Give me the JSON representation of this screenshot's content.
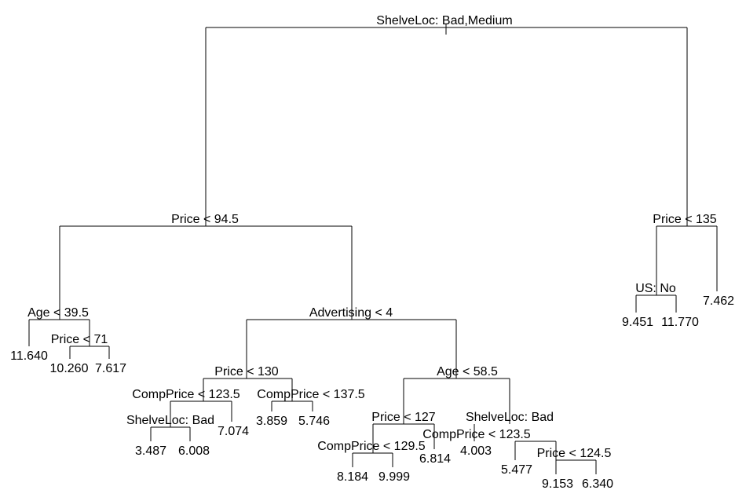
{
  "tree": {
    "root": {
      "id": "root",
      "split": "ShelveLoc: Bad,Medium",
      "left": {
        "id": "n2",
        "split": "Price < 94.5",
        "left": {
          "id": "n4",
          "split": "Age < 39.5",
          "left": {
            "id": "l1",
            "leaf": "11.640"
          },
          "right": {
            "id": "n5",
            "split": "Price < 71",
            "left": {
              "id": "l2",
              "leaf": "10.260"
            },
            "right": {
              "id": "l3",
              "leaf": "7.617"
            }
          }
        },
        "right": {
          "id": "n6",
          "split": "Advertising < 4",
          "left": {
            "id": "n7",
            "split": "Price < 130",
            "left": {
              "id": "n8",
              "split": "CompPrice < 123.5",
              "left": {
                "id": "n9",
                "split": "ShelveLoc: Bad",
                "left": {
                  "id": "l4",
                  "leaf": "3.487"
                },
                "right": {
                  "id": "l5",
                  "leaf": "6.008"
                }
              },
              "right": {
                "id": "l6",
                "leaf": "7.074"
              }
            },
            "right": {
              "id": "n10",
              "split": "CompPrice < 137.5",
              "left": {
                "id": "l7",
                "leaf": "3.859"
              },
              "right": {
                "id": "l8",
                "leaf": "5.746"
              }
            }
          },
          "right": {
            "id": "n11",
            "split": "Age < 58.5",
            "left": {
              "id": "n12",
              "split": "Price < 127",
              "left": {
                "id": "n13",
                "split": "CompPrice < 129.5",
                "left": {
                  "id": "l9",
                  "leaf": "8.184"
                },
                "right": {
                  "id": "l10",
                  "leaf": "9.999"
                }
              },
              "right": {
                "id": "l11",
                "leaf": "6.814"
              }
            },
            "right": {
              "id": "n14",
              "split": "ShelveLoc: Bad",
              "left": {
                "id": "l12",
                "leaf": "4.003"
              },
              "right": {
                "id": "n15",
                "split": "CompPrice < 123.5",
                "left": {
                  "id": "l13",
                  "leaf": "5.477"
                },
                "right": {
                  "id": "n16",
                  "split": "Price < 124.5",
                  "left": {
                    "id": "l14",
                    "leaf": "9.153"
                  },
                  "right": {
                    "id": "l15",
                    "leaf": "6.340"
                  }
                }
              }
            }
          }
        }
      },
      "right": {
        "id": "n3",
        "split": "Price < 135",
        "left": {
          "id": "n17",
          "split": "US: No",
          "left": {
            "id": "l16",
            "leaf": "9.451"
          },
          "right": {
            "id": "l17",
            "leaf": "11.770"
          }
        },
        "right": {
          "id": "l18",
          "leaf": "7.462"
        }
      }
    }
  }
}
